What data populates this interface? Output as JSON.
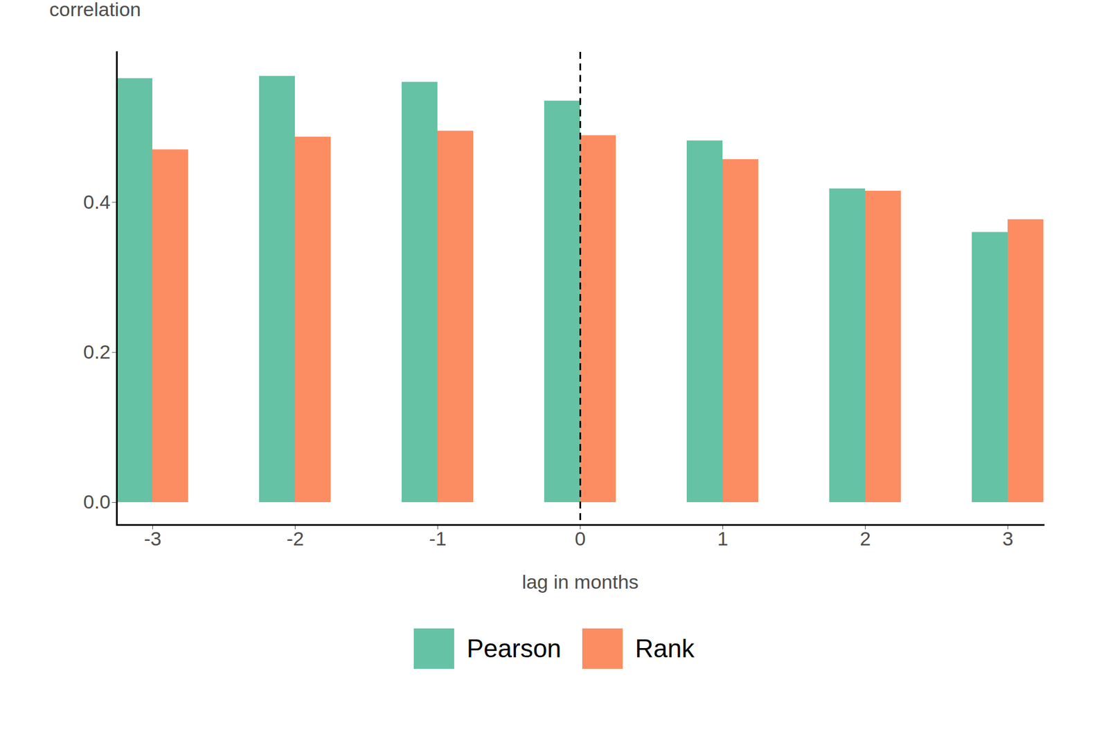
{
  "chart_data": {
    "type": "bar",
    "y_label": "correlation",
    "x_label": "lag in months",
    "categories": [
      "-3",
      "-2",
      "-1",
      "0",
      "1",
      "2",
      "3"
    ],
    "series": [
      {
        "name": "Pearson",
        "color": "#66c2a5",
        "values": [
          0.565,
          0.568,
          0.56,
          0.535,
          0.482,
          0.418,
          0.36
        ]
      },
      {
        "name": "Rank",
        "color": "#fc8d62",
        "values": [
          0.47,
          0.487,
          0.495,
          0.489,
          0.457,
          0.415,
          0.377
        ]
      }
    ],
    "ylim": [
      -0.03,
      0.6
    ],
    "yticks": [
      {
        "value": 0,
        "label": "0.0"
      },
      0.2,
      0.4
    ],
    "grid": false,
    "legend": "bottom",
    "reference_line": {
      "category": "0",
      "line_style": "dashed"
    }
  }
}
